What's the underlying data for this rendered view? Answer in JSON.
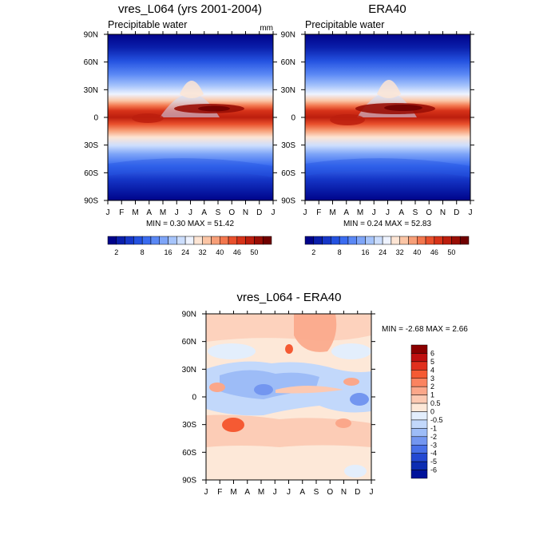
{
  "chart_data": [
    {
      "type": "heatmap",
      "title": "vres_L064 (yrs 2001-2004)",
      "subtitle": "Precipitable water",
      "units": "mm",
      "x_tick_labels": [
        "J",
        "F",
        "M",
        "A",
        "M",
        "J",
        "J",
        "A",
        "S",
        "O",
        "N",
        "D",
        "J"
      ],
      "y_tick_labels": [
        "90N",
        "60N",
        "30N",
        "0",
        "30S",
        "60S",
        "90S"
      ],
      "xlim": [
        0,
        12
      ],
      "ylim": [
        -90,
        90
      ],
      "min_max_text": "MIN =   0.30 MAX =  51.42",
      "min": 0.3,
      "max": 51.42,
      "colorbar_levels": [
        0,
        2,
        4,
        6,
        8,
        10,
        12,
        16,
        20,
        24,
        28,
        32,
        36,
        40,
        44,
        46,
        48,
        50,
        54
      ],
      "colorbar_colors": [
        "#00038a",
        "#0a1fab",
        "#1637c8",
        "#2452e0",
        "#3a6cf0",
        "#5a88f5",
        "#7ea5f8",
        "#a6c4fb",
        "#ccdefd",
        "#eef3ff",
        "#fde5d4",
        "#fbc5a5",
        "#f79f78",
        "#f3774e",
        "#e9502c",
        "#d73319",
        "#bc1e0e",
        "#990e05",
        "#700000"
      ],
      "colorbar_tick_labels": [
        "2",
        "8",
        "16",
        "24",
        "32",
        "40",
        "46",
        "50"
      ],
      "colorbar_tick_values": [
        2,
        8,
        16,
        24,
        32,
        40,
        46,
        50
      ]
    },
    {
      "type": "heatmap",
      "title": "ERA40",
      "subtitle": "Precipitable water",
      "x_tick_labels": [
        "J",
        "F",
        "M",
        "A",
        "M",
        "J",
        "J",
        "A",
        "S",
        "O",
        "N",
        "D",
        "J"
      ],
      "y_tick_labels": [
        "90N",
        "60N",
        "30N",
        "0",
        "30S",
        "60S",
        "90S"
      ],
      "xlim": [
        0,
        12
      ],
      "ylim": [
        -90,
        90
      ],
      "min_max_text": "MIN =   0.24 MAX =  52.83",
      "min": 0.24,
      "max": 52.83,
      "colorbar_levels": [
        0,
        2,
        4,
        6,
        8,
        10,
        12,
        16,
        20,
        24,
        28,
        32,
        36,
        40,
        44,
        46,
        48,
        50,
        54
      ],
      "colorbar_colors": [
        "#00038a",
        "#0a1fab",
        "#1637c8",
        "#2452e0",
        "#3a6cf0",
        "#5a88f5",
        "#7ea5f8",
        "#a6c4fb",
        "#ccdefd",
        "#eef3ff",
        "#fde5d4",
        "#fbc5a5",
        "#f79f78",
        "#f3774e",
        "#e9502c",
        "#d73319",
        "#bc1e0e",
        "#990e05",
        "#700000"
      ],
      "colorbar_tick_labels": [
        "2",
        "8",
        "16",
        "24",
        "32",
        "40",
        "46",
        "50"
      ],
      "colorbar_tick_values": [
        2,
        8,
        16,
        24,
        32,
        40,
        46,
        50
      ]
    },
    {
      "type": "heatmap",
      "title": "vres_L064 - ERA40",
      "x_tick_labels": [
        "J",
        "F",
        "M",
        "A",
        "M",
        "J",
        "J",
        "A",
        "S",
        "O",
        "N",
        "D",
        "J"
      ],
      "y_tick_labels": [
        "90N",
        "60N",
        "30N",
        "0",
        "30S",
        "60S",
        "90S"
      ],
      "xlim": [
        0,
        12
      ],
      "ylim": [
        -90,
        90
      ],
      "min_max_text": "MIN =  -2.68 MAX =   2.66",
      "min": -2.68,
      "max": 2.66,
      "colorbar_tick_labels": [
        "6",
        "5",
        "4",
        "3",
        "2",
        "1",
        "0.5",
        "0",
        "-0.5",
        "-1",
        "-2",
        "-3",
        "-4",
        "-5",
        "-6"
      ],
      "colorbar_colors_top_to_bottom": [
        "#8b0000",
        "#bf1010",
        "#e0301e",
        "#f55a33",
        "#fb8360",
        "#fba78a",
        "#fcc9b2",
        "#fde8d8",
        "#e3eefc",
        "#c2d8fb",
        "#9dbcf7",
        "#7396f0",
        "#4870e8",
        "#2449d2",
        "#0d2db2",
        "#00129a"
      ]
    }
  ]
}
